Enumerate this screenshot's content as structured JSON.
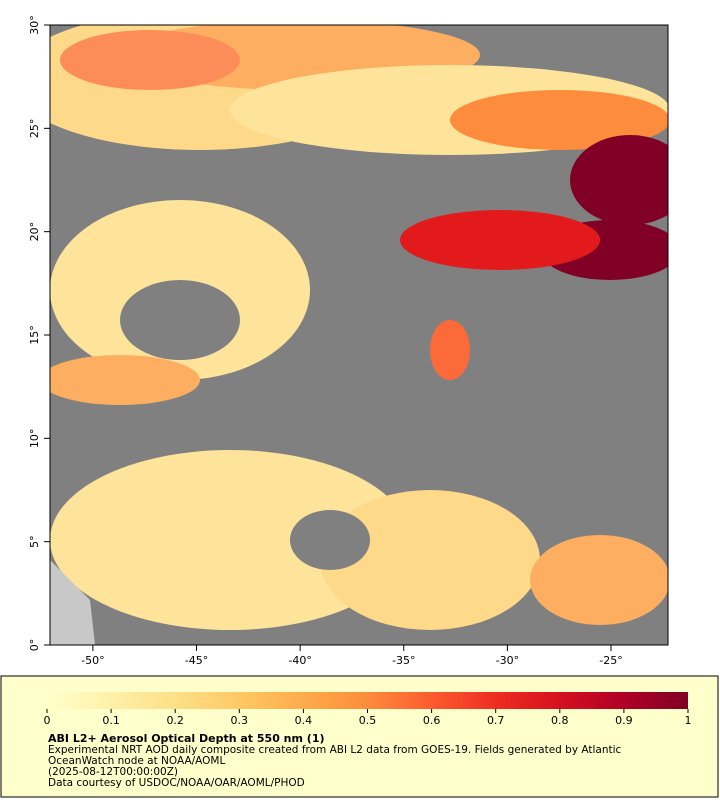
{
  "map": {
    "title": "ABI L2+ Aerosol Optical Depth at 550 nm (1)",
    "description": [
      "Experimental NRT AOD daily composite created from ABI L2 data from GOES-19. Fields generated by Atlantic",
      "OceanWatch node at NOAA/AOML",
      "(2025-08-12T00:00:00Z)",
      "Data courtesy of USDOC/NOAA/OAR/AOML/PHOD"
    ],
    "xlim": [
      -52.07,
      -22.25
    ],
    "ylim": [
      0,
      30
    ],
    "xticks": [
      {
        "value": -50,
        "label": "-50°"
      },
      {
        "value": -45,
        "label": "-45°"
      },
      {
        "value": -40,
        "label": "-40°"
      },
      {
        "value": -35,
        "label": "-35°"
      },
      {
        "value": -30,
        "label": "-30°"
      },
      {
        "value": -25,
        "label": "-25°"
      }
    ],
    "yticks": [
      {
        "value": 0,
        "label": "0°"
      },
      {
        "value": 5,
        "label": "5°"
      },
      {
        "value": 10,
        "label": "10°"
      },
      {
        "value": 15,
        "label": "15°"
      },
      {
        "value": 20,
        "label": "20°"
      },
      {
        "value": 25,
        "label": "25°"
      },
      {
        "value": 30,
        "label": "30°"
      }
    ],
    "colorbar": {
      "lim": [
        0,
        1
      ],
      "ticks": [
        0,
        0.1,
        0.2,
        0.3,
        0.4,
        0.5,
        0.6,
        0.7,
        0.8,
        0.9,
        1
      ],
      "colors": [
        "#ffffcc",
        "#fff0a8",
        "#fee087",
        "#fec965",
        "#feab4b",
        "#fd8c3c",
        "#fc5b2e",
        "#ed2e21",
        "#d41020",
        "#b00026",
        "#800026"
      ]
    }
  }
}
